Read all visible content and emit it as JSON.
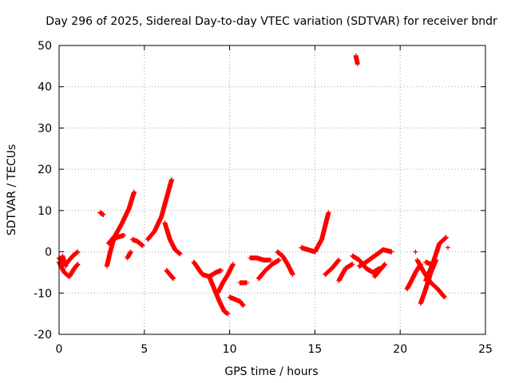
{
  "chart_data": {
    "type": "scatter",
    "title": "Day 296 of 2025, Sidereal Day-to-day VTEC variation (SDTVAR) for receiver bndr",
    "xlabel": "GPS time / hours",
    "ylabel": "SDTVAR / TECUs",
    "xlim": [
      0,
      25
    ],
    "ylim": [
      -20,
      50
    ],
    "xticks": [
      0,
      5,
      10,
      15,
      20,
      25
    ],
    "yticks": [
      -20,
      -10,
      0,
      10,
      20,
      30,
      40,
      50
    ],
    "grid": true,
    "marker": "+",
    "color": "#ff0000",
    "tracks": [
      {
        "x": [
          0.0,
          0.3,
          0.6,
          0.9,
          1.1
        ],
        "y": [
          -2.5,
          -5.0,
          -6.0,
          -4.0,
          -3.0
        ]
      },
      {
        "x": [
          0.0,
          0.4,
          0.8,
          1.1
        ],
        "y": [
          -1.5,
          -3.0,
          -1.0,
          0.0
        ]
      },
      {
        "x": [
          0.2,
          0.4
        ],
        "y": [
          -1.0,
          -3.5
        ]
      },
      {
        "x": [
          2.4,
          2.6
        ],
        "y": [
          9.5,
          9.0
        ]
      },
      {
        "x": [
          2.8,
          3.0,
          3.2
        ],
        "y": [
          -3.5,
          0.0,
          3.0
        ]
      },
      {
        "x": [
          2.9,
          3.3,
          3.7,
          4.1,
          4.4
        ],
        "y": [
          2.0,
          4.0,
          7.0,
          10.5,
          14.5
        ]
      },
      {
        "x": [
          3.0,
          3.4,
          3.8
        ],
        "y": [
          2.5,
          3.5,
          4.0
        ]
      },
      {
        "x": [
          4.0,
          4.2
        ],
        "y": [
          -1.5,
          0.0
        ]
      },
      {
        "x": [
          4.3,
          4.6,
          4.9
        ],
        "y": [
          3.0,
          2.5,
          1.5
        ]
      },
      {
        "x": [
          5.2,
          5.6,
          6.0,
          6.3,
          6.6
        ],
        "y": [
          3.0,
          5.0,
          8.5,
          13.0,
          17.5
        ]
      },
      {
        "x": [
          6.2,
          6.5,
          6.8,
          7.1
        ],
        "y": [
          7.0,
          3.0,
          0.5,
          -0.5
        ]
      },
      {
        "x": [
          6.3,
          6.5,
          6.7
        ],
        "y": [
          -4.5,
          -5.5,
          -6.5
        ]
      },
      {
        "x": [
          7.9,
          8.4,
          8.8,
          9.2,
          9.5
        ],
        "y": [
          -2.5,
          -5.5,
          -6.0,
          -5.0,
          -4.5
        ]
      },
      {
        "x": [
          8.8,
          9.1,
          9.4,
          9.7,
          9.9
        ],
        "y": [
          -6.0,
          -9.0,
          -12.0,
          -14.5,
          -15.0
        ]
      },
      {
        "x": [
          9.3,
          9.6,
          9.9,
          10.2
        ],
        "y": [
          -10.0,
          -7.5,
          -5.5,
          -3.0
        ]
      },
      {
        "x": [
          10.0,
          10.3,
          10.6,
          10.8
        ],
        "y": [
          -11.0,
          -11.5,
          -12.0,
          -13.0
        ]
      },
      {
        "x": [
          10.6,
          11.0
        ],
        "y": [
          -7.5,
          -7.5
        ]
      },
      {
        "x": [
          11.2,
          11.6,
          12.0,
          12.4
        ],
        "y": [
          -1.5,
          -1.5,
          -2.0,
          -2.0
        ]
      },
      {
        "x": [
          11.7,
          12.1,
          12.5,
          12.9
        ],
        "y": [
          -6.5,
          -4.5,
          -3.0,
          -2.0
        ]
      },
      {
        "x": [
          12.8,
          13.1,
          13.4,
          13.7
        ],
        "y": [
          0.0,
          -1.0,
          -3.0,
          -5.5
        ]
      },
      {
        "x": [
          14.2,
          14.6,
          15.0,
          15.4,
          15.8
        ],
        "y": [
          1.0,
          0.5,
          0.0,
          3.0,
          9.5
        ]
      },
      {
        "x": [
          15.6,
          16.0,
          16.4
        ],
        "y": [
          -5.5,
          -4.0,
          -2.0
        ]
      },
      {
        "x": [
          16.4,
          16.8,
          17.2
        ],
        "y": [
          -7.0,
          -4.0,
          -3.0
        ]
      },
      {
        "x": [
          17.4,
          17.5
        ],
        "y": [
          47.5,
          45.5
        ]
      },
      {
        "x": [
          17.2,
          17.6,
          18.0,
          18.4,
          18.8
        ],
        "y": [
          -1.0,
          -2.0,
          -4.0,
          -5.0,
          -4.0
        ]
      },
      {
        "x": [
          17.6,
          18.0,
          18.5,
          19.0,
          19.5
        ],
        "y": [
          -3.5,
          -2.5,
          -1.0,
          0.5,
          0.0
        ]
      },
      {
        "x": [
          18.5,
          18.8,
          19.1
        ],
        "y": [
          -6.0,
          -4.5,
          -3.0
        ]
      },
      {
        "x": [
          20.4,
          20.6,
          20.9,
          21.2
        ],
        "y": [
          -9.0,
          -7.5,
          -5.0,
          -3.0
        ]
      },
      {
        "x": [
          21.0,
          21.4,
          21.8,
          22.2,
          22.6
        ],
        "y": [
          -2.0,
          -5.0,
          -7.5,
          -9.0,
          -11.0
        ]
      },
      {
        "x": [
          21.2,
          21.5,
          21.8,
          22.1
        ],
        "y": [
          -12.5,
          -9.0,
          -5.0,
          -2.0
        ]
      },
      {
        "x": [
          21.5,
          21.9,
          22.3,
          22.7
        ],
        "y": [
          -7.0,
          -3.0,
          2.0,
          3.5
        ]
      },
      {
        "x": [
          21.5,
          21.8
        ],
        "y": [
          -2.5,
          -3.0
        ]
      },
      {
        "x": [
          20.9
        ],
        "y": [
          0.0
        ]
      },
      {
        "x": [
          22.8
        ],
        "y": [
          1.0
        ]
      }
    ]
  }
}
